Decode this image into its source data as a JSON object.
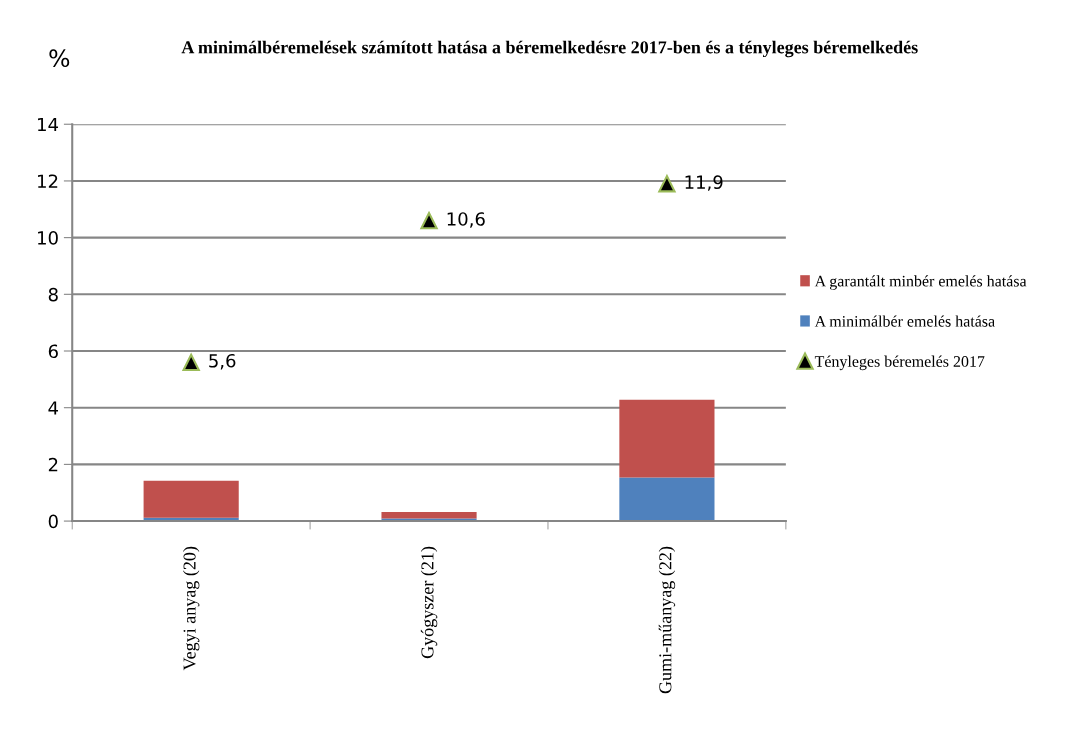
{
  "chart_data": {
    "type": "bar",
    "title": "A minimálbéremelések számított hatása a béremelkedésre 2017-ben és a tényleges béremelkedés",
    "ylabel": "%",
    "categories": [
      "Vegyi anyag (20)",
      "Gyógyszer (21)",
      "Gumi-műanyag (22)"
    ],
    "stacked": true,
    "ylim": [
      0,
      14
    ],
    "yticks": [
      0,
      2,
      4,
      6,
      8,
      10,
      12,
      14
    ],
    "grid": "y",
    "legend": "right",
    "series": [
      {
        "name": "A minimálbér emelés hatása",
        "color": "#4f81bd",
        "values": [
          0.12,
          0.09,
          1.54
        ]
      },
      {
        "name": "A garantált minbér emelés hatása",
        "color": "#c0504d",
        "values": [
          1.3,
          0.23,
          2.74
        ]
      },
      {
        "name": "Tényleges béremelés 2017",
        "type": "scatter",
        "marker": "triangle",
        "color": "#000000",
        "values": [
          5.6,
          10.6,
          11.9
        ],
        "value_labels": [
          "5,6",
          "10,6",
          "11,9"
        ]
      }
    ]
  }
}
